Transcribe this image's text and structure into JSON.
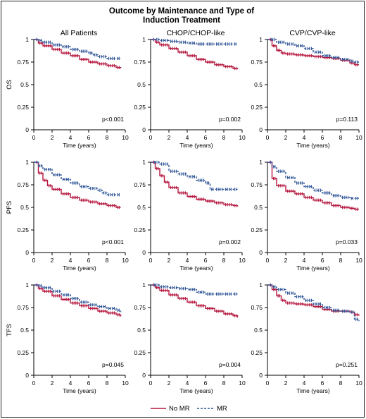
{
  "figure": {
    "title_line1": "Outcome by Maintenance and Type of",
    "title_line2": "Induction Treatment",
    "columns": [
      "All Patients",
      "CHOP/CHOP-like",
      "CVP/CVP-like"
    ],
    "rows": [
      "OS",
      "PFS",
      "TFS"
    ],
    "xlabel": "Time (years)",
    "legend": {
      "no_mr": {
        "label": "No MR",
        "color": "#b5173f"
      },
      "mr": {
        "label": "MR",
        "color": "#2f5597"
      }
    }
  },
  "chart_data": [
    {
      "type": "line",
      "row": "OS",
      "column": "All Patients",
      "xlabel": "Time (years)",
      "xlim": [
        0,
        10
      ],
      "ylim": [
        0,
        1
      ],
      "xticks": [
        0,
        2,
        4,
        6,
        8,
        10
      ],
      "yticks": [
        0,
        0.25,
        0.5,
        0.75,
        1
      ],
      "annotation": "p<0.001",
      "series": [
        {
          "name": "No MR",
          "x": [
            0,
            0.5,
            1,
            2,
            3,
            4,
            5,
            6,
            7,
            8,
            9,
            9.5
          ],
          "y": [
            1,
            0.96,
            0.93,
            0.89,
            0.85,
            0.82,
            0.78,
            0.75,
            0.73,
            0.71,
            0.69,
            0.68
          ]
        },
        {
          "name": "MR",
          "x": [
            0,
            0.5,
            1,
            2,
            3,
            4,
            5,
            6,
            6.5,
            7,
            8,
            9,
            9.5
          ],
          "y": [
            1,
            0.99,
            0.97,
            0.94,
            0.92,
            0.89,
            0.87,
            0.85,
            0.83,
            0.81,
            0.79,
            0.79,
            0.79
          ]
        }
      ]
    },
    {
      "type": "line",
      "row": "OS",
      "column": "CHOP/CHOP-like",
      "xlabel": "Time (years)",
      "xlim": [
        0,
        10
      ],
      "ylim": [
        0,
        1
      ],
      "xticks": [
        0,
        2,
        4,
        6,
        8,
        10
      ],
      "yticks": [
        0,
        0.25,
        0.5,
        0.75,
        1
      ],
      "annotation": "p=0.002",
      "series": [
        {
          "name": "No MR",
          "x": [
            0,
            0.5,
            1,
            2,
            3,
            4,
            5,
            6,
            7,
            8,
            9,
            9.5
          ],
          "y": [
            1,
            0.97,
            0.94,
            0.9,
            0.86,
            0.82,
            0.78,
            0.75,
            0.72,
            0.7,
            0.68,
            0.67
          ]
        },
        {
          "name": "MR",
          "x": [
            0,
            0.5,
            1,
            2,
            3,
            4,
            5,
            6,
            7,
            8,
            9,
            9.5
          ],
          "y": [
            1,
            1,
            0.99,
            0.98,
            0.97,
            0.96,
            0.95,
            0.95,
            0.95,
            0.95,
            0.95,
            0.95
          ]
        }
      ]
    },
    {
      "type": "line",
      "row": "OS",
      "column": "CVP/CVP-like",
      "xlabel": "Time (years)",
      "xlim": [
        0,
        10
      ],
      "ylim": [
        0,
        1
      ],
      "xticks": [
        0,
        2,
        4,
        6,
        8,
        10
      ],
      "yticks": [
        0,
        0.25,
        0.5,
        0.75,
        1
      ],
      "annotation": "p=0.113",
      "series": [
        {
          "name": "No MR",
          "x": [
            0,
            0.5,
            1,
            1.5,
            2,
            3,
            4,
            5,
            6,
            7,
            8,
            9,
            9.5,
            10
          ],
          "y": [
            1,
            0.93,
            0.88,
            0.85,
            0.84,
            0.83,
            0.82,
            0.81,
            0.8,
            0.79,
            0.77,
            0.74,
            0.72,
            0.72
          ]
        },
        {
          "name": "MR",
          "x": [
            0,
            1,
            2,
            3,
            4,
            5,
            6,
            7,
            8,
            9,
            9.5,
            10
          ],
          "y": [
            1,
            0.97,
            0.95,
            0.93,
            0.9,
            0.86,
            0.82,
            0.8,
            0.78,
            0.76,
            0.75,
            0.75
          ]
        }
      ]
    },
    {
      "type": "line",
      "row": "PFS",
      "column": "All Patients",
      "xlabel": "Time (years)",
      "xlim": [
        0,
        10
      ],
      "ylim": [
        0,
        1
      ],
      "xticks": [
        0,
        2,
        4,
        6,
        8,
        10
      ],
      "yticks": [
        0,
        0.25,
        0.5,
        0.75,
        1
      ],
      "annotation": "p<0.001",
      "series": [
        {
          "name": "No MR",
          "x": [
            0,
            0.5,
            1,
            1.5,
            2,
            3,
            4,
            5,
            6,
            7,
            8,
            9,
            9.5
          ],
          "y": [
            1,
            0.88,
            0.8,
            0.74,
            0.7,
            0.65,
            0.61,
            0.58,
            0.56,
            0.54,
            0.52,
            0.5,
            0.5
          ]
        },
        {
          "name": "MR",
          "x": [
            0,
            0.5,
            1,
            2,
            3,
            4,
            5,
            6,
            7,
            7.5,
            8,
            9,
            9.5
          ],
          "y": [
            1,
            0.96,
            0.92,
            0.86,
            0.81,
            0.77,
            0.73,
            0.71,
            0.69,
            0.66,
            0.64,
            0.64,
            0.64
          ]
        }
      ]
    },
    {
      "type": "line",
      "row": "PFS",
      "column": "CHOP/CHOP-like",
      "xlabel": "Time (years)",
      "xlim": [
        0,
        10
      ],
      "ylim": [
        0,
        1
      ],
      "xticks": [
        0,
        2,
        4,
        6,
        8,
        10
      ],
      "yticks": [
        0,
        0.25,
        0.5,
        0.75,
        1
      ],
      "annotation": "p=0.002",
      "series": [
        {
          "name": "No MR",
          "x": [
            0,
            0.5,
            1,
            1.5,
            2,
            3,
            4,
            5,
            6,
            7,
            8,
            9,
            9.5
          ],
          "y": [
            1,
            0.93,
            0.85,
            0.78,
            0.72,
            0.66,
            0.62,
            0.59,
            0.57,
            0.55,
            0.53,
            0.52,
            0.51
          ]
        },
        {
          "name": "MR",
          "x": [
            0,
            1,
            2,
            3,
            4,
            5,
            6,
            6.5,
            7,
            8,
            9,
            9.5
          ],
          "y": [
            1,
            0.98,
            0.9,
            0.87,
            0.84,
            0.8,
            0.77,
            0.7,
            0.7,
            0.7,
            0.7,
            0.7
          ]
        }
      ]
    },
    {
      "type": "line",
      "row": "PFS",
      "column": "CVP/CVP-like",
      "xlabel": "Time (years)",
      "xlim": [
        0,
        10
      ],
      "ylim": [
        0,
        1
      ],
      "xticks": [
        0,
        2,
        4,
        6,
        8,
        10
      ],
      "yticks": [
        0,
        0.25,
        0.5,
        0.75,
        1
      ],
      "annotation": "p=0.033",
      "series": [
        {
          "name": "No MR",
          "x": [
            0,
            0.5,
            1,
            2,
            3,
            4,
            5,
            6,
            7,
            8,
            9,
            9.5,
            10
          ],
          "y": [
            1,
            0.82,
            0.74,
            0.68,
            0.65,
            0.61,
            0.58,
            0.55,
            0.52,
            0.5,
            0.49,
            0.48,
            0.48
          ]
        },
        {
          "name": "MR",
          "x": [
            0,
            0.5,
            1,
            2,
            3,
            4,
            5,
            6,
            7,
            8,
            9,
            9.5,
            10
          ],
          "y": [
            1,
            0.95,
            0.9,
            0.83,
            0.77,
            0.73,
            0.69,
            0.66,
            0.63,
            0.61,
            0.6,
            0.6,
            0.6
          ]
        }
      ]
    },
    {
      "type": "line",
      "row": "TFS",
      "column": "All Patients",
      "xlabel": "Time (years)",
      "xlim": [
        0,
        10
      ],
      "ylim": [
        0,
        1
      ],
      "xticks": [
        0,
        2,
        4,
        6,
        8,
        10
      ],
      "yticks": [
        0,
        0.25,
        0.5,
        0.75,
        1
      ],
      "annotation": "p=0.045",
      "series": [
        {
          "name": "No MR",
          "x": [
            0,
            0.5,
            1,
            2,
            3,
            4,
            5,
            6,
            7,
            8,
            9,
            9.5
          ],
          "y": [
            1,
            0.96,
            0.93,
            0.88,
            0.84,
            0.8,
            0.77,
            0.74,
            0.71,
            0.69,
            0.67,
            0.65
          ]
        },
        {
          "name": "MR",
          "x": [
            0,
            0.5,
            1,
            2,
            3,
            4,
            5,
            6,
            7,
            8,
            9,
            9.5
          ],
          "y": [
            1,
            0.99,
            0.97,
            0.93,
            0.89,
            0.85,
            0.81,
            0.78,
            0.76,
            0.74,
            0.72,
            0.7
          ]
        }
      ]
    },
    {
      "type": "line",
      "row": "TFS",
      "column": "CHOP/CHOP-like",
      "xlabel": "Time (years)",
      "xlim": [
        0,
        10
      ],
      "ylim": [
        0,
        1
      ],
      "xticks": [
        0,
        2,
        4,
        6,
        8,
        10
      ],
      "yticks": [
        0,
        0.25,
        0.5,
        0.75,
        1
      ],
      "annotation": "p=0.004",
      "series": [
        {
          "name": "No MR",
          "x": [
            0,
            0.5,
            1,
            2,
            3,
            4,
            5,
            6,
            7,
            8,
            9,
            9.5
          ],
          "y": [
            1,
            0.97,
            0.94,
            0.89,
            0.85,
            0.81,
            0.77,
            0.74,
            0.71,
            0.68,
            0.66,
            0.64
          ]
        },
        {
          "name": "MR",
          "x": [
            0,
            1,
            2,
            3,
            4,
            5,
            6,
            7,
            8,
            9,
            9.5
          ],
          "y": [
            1,
            0.98,
            0.97,
            0.96,
            0.95,
            0.92,
            0.9,
            0.9,
            0.9,
            0.9,
            0.9
          ]
        }
      ]
    },
    {
      "type": "line",
      "row": "TFS",
      "column": "CVP/CVP-like",
      "xlabel": "Time (years)",
      "xlim": [
        0,
        10
      ],
      "ylim": [
        0,
        1
      ],
      "xticks": [
        0,
        2,
        4,
        6,
        8,
        10
      ],
      "yticks": [
        0,
        0.25,
        0.5,
        0.75,
        1
      ],
      "annotation": "p=0.251",
      "series": [
        {
          "name": "No MR",
          "x": [
            0,
            0.5,
            1,
            1.5,
            2,
            3,
            4,
            5,
            6,
            7,
            8,
            9,
            9.5,
            10
          ],
          "y": [
            1,
            0.95,
            0.88,
            0.83,
            0.8,
            0.79,
            0.78,
            0.76,
            0.73,
            0.71,
            0.71,
            0.7,
            0.67,
            0.66
          ]
        },
        {
          "name": "MR",
          "x": [
            0,
            0.5,
            1,
            2,
            3,
            4,
            5,
            6,
            7,
            8,
            9,
            9.5,
            10
          ],
          "y": [
            1,
            0.98,
            0.95,
            0.91,
            0.87,
            0.83,
            0.79,
            0.75,
            0.72,
            0.71,
            0.7,
            0.62,
            0.6
          ]
        }
      ]
    }
  ]
}
